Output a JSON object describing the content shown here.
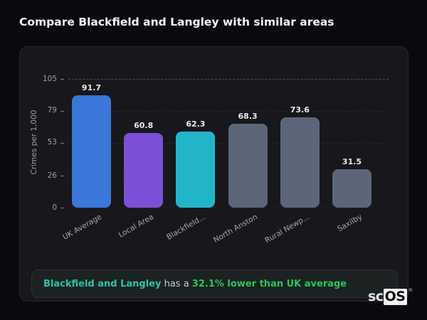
{
  "page": {
    "title": "Compare Blackfield and Langley with similar areas",
    "background_color": "#0a0a0e",
    "card_color": "#17171c"
  },
  "chart_data": {
    "type": "bar",
    "title": "",
    "xlabel": "",
    "ylabel": "Crimes per 1,000",
    "categories": [
      "UK Average",
      "Local Area",
      "Blackfield...",
      "North Anston",
      "Rural Newp...",
      "Saxilby"
    ],
    "values": [
      91.7,
      60.8,
      62.3,
      68.3,
      73.6,
      31.5
    ],
    "value_labels": [
      "91.7",
      "60.8",
      "62.3",
      "68.3",
      "73.6",
      "31.5"
    ],
    "bar_colors": [
      "#3b76d9",
      "#7b50d6",
      "#22b5c9",
      "#5b6679",
      "#5b6679",
      "#5b6679"
    ],
    "yticks": [
      0,
      26,
      53,
      79,
      105
    ],
    "ylim": [
      0,
      105
    ],
    "grid": "dashed-horizontal",
    "legend": "none"
  },
  "note": {
    "subject": "Blackfield and Langley",
    "connector": " has a ",
    "highlight": "32.1% lower than UK average",
    "subject_color": "#28c4a8",
    "highlight_color": "#2dc25f"
  },
  "logo": {
    "prefix": "sc",
    "suffix": "OS",
    "registered": "®"
  }
}
